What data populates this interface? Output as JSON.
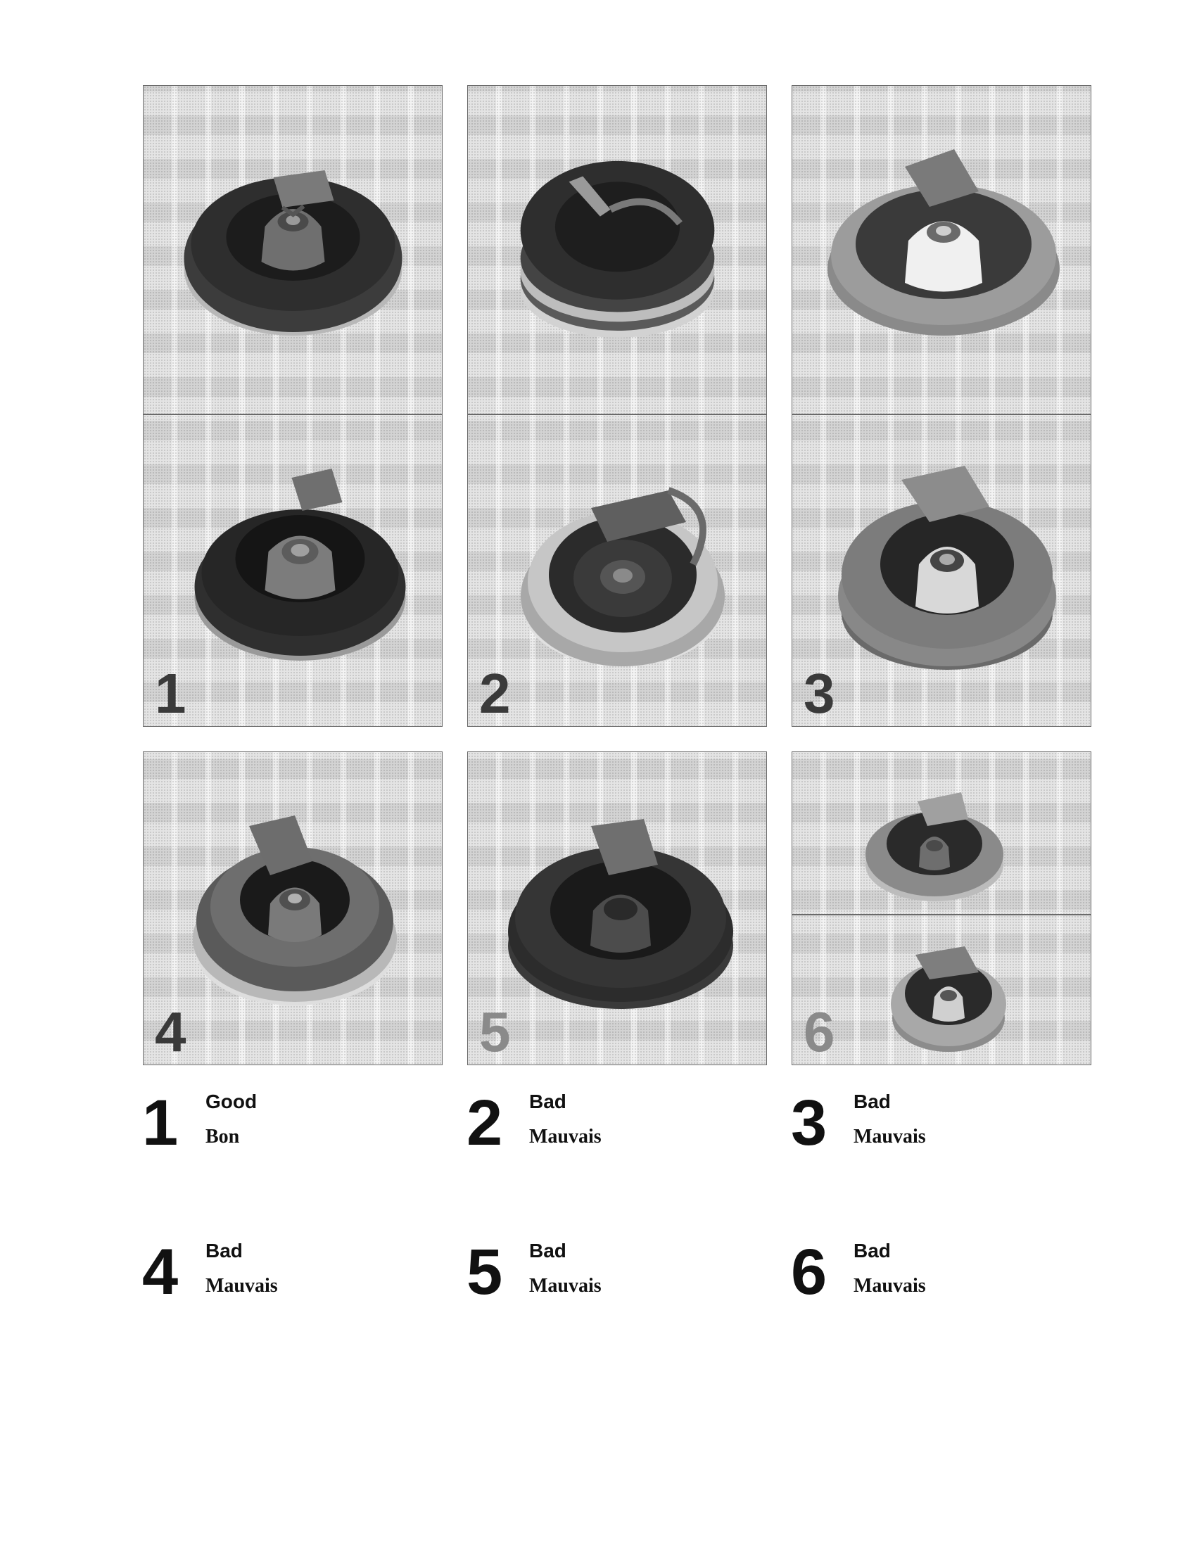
{
  "panels": [
    {
      "number": "1",
      "images": [
        "front-view",
        "angled-view"
      ]
    },
    {
      "number": "2",
      "images": [
        "front-view",
        "angled-view"
      ]
    },
    {
      "number": "3",
      "images": [
        "front-view",
        "angled-view"
      ]
    },
    {
      "number": "4",
      "images": [
        "angled-view"
      ]
    },
    {
      "number": "5",
      "images": [
        "angled-view"
      ]
    },
    {
      "number": "6",
      "images": [
        "front-view",
        "angled-view"
      ]
    }
  ],
  "captions": [
    {
      "number": "1",
      "english": "Good",
      "french": "Bon"
    },
    {
      "number": "2",
      "english": "Bad",
      "french": "Mauvais"
    },
    {
      "number": "3",
      "english": "Bad",
      "french": "Mauvais"
    },
    {
      "number": "4",
      "english": "Bad",
      "french": "Mauvais"
    },
    {
      "number": "5",
      "english": "Bad",
      "french": "Mauvais"
    },
    {
      "number": "6",
      "english": "Bad",
      "french": "Mauvais"
    }
  ],
  "colors": {
    "panel_number_dark": "#3a3a3a",
    "panel_number_light": "#8a8a8a"
  }
}
